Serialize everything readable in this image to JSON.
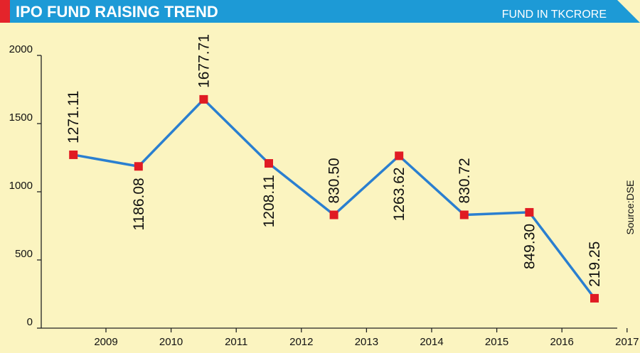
{
  "header": {
    "title": "IPO FUND RAISING TREND",
    "unit": "FUND IN TKCRORE"
  },
  "source": "Source:DSE",
  "colors": {
    "background": "#fbf4c0",
    "header_bar": "#1d9ad6",
    "accent": "#e4242b",
    "line": "#2a7fd0",
    "marker": "#e01b23"
  },
  "chart_data": {
    "type": "line",
    "title": "IPO FUND RAISING TREND",
    "xlabel": "",
    "ylabel": "",
    "x_ticks": [
      "2009",
      "2010",
      "2011",
      "2012",
      "2013",
      "2014",
      "2015",
      "2016",
      "2017"
    ],
    "y_ticks": [
      "0",
      "500",
      "1000",
      "1500",
      "2000"
    ],
    "ylim": [
      0,
      2000
    ],
    "grid": false,
    "legend": "none",
    "series": [
      {
        "values": [
          1271.11,
          1186.08,
          1677.71,
          1208.11,
          830.5,
          1263.62,
          830.72,
          849.3,
          219.25
        ],
        "labels": [
          "1271.11",
          "1186.08",
          "1677.71",
          "1208.11",
          "830.50",
          "1263.62",
          "830.72",
          "849.30",
          "219.25"
        ]
      }
    ]
  }
}
